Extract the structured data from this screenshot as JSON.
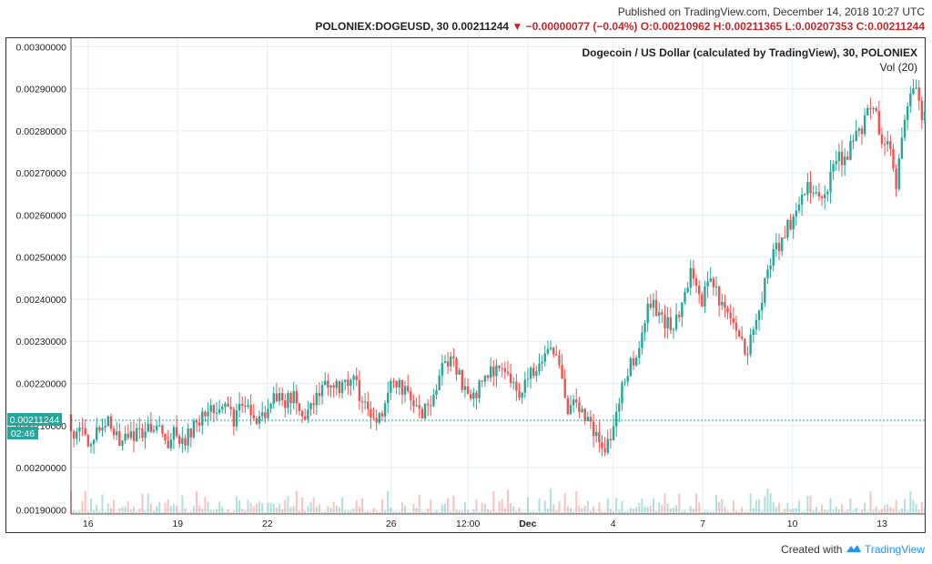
{
  "header": {
    "published": "Published on TradingView.com, December 14, 2018 10:27 UTC",
    "symbol_line_dark": "POLONIEX:DOGEUSD, 30  0.00211244",
    "symbol_line_red": "▼ −0.00000077 (−0.04%) O:0.00210962 H:0.00211365 L:0.00207353 C:0.00211244"
  },
  "chart_data": {
    "type": "candlestick",
    "title": "Dogecoin / US Dollar (calculated by TradingView), 30, POLONIEX",
    "subtitle": "Vol (20)",
    "ylim": [
      0.00189,
      0.00302
    ],
    "y_ticks": [
      "0.00300000",
      "0.00290000",
      "0.00280000",
      "0.00270000",
      "0.00260000",
      "0.00250000",
      "0.00240000",
      "0.00230000",
      "0.00220000",
      "0.00210000",
      "0.00200000",
      "0.00190000"
    ],
    "y_tick_values": [
      0.003,
      0.0029,
      0.0028,
      0.0027,
      0.0026,
      0.0025,
      0.0024,
      0.0023,
      0.0022,
      0.0021,
      0.002,
      0.0019
    ],
    "x_ticks": [
      {
        "label": "13",
        "frac": 0.05,
        "bold": false
      },
      {
        "label": "10",
        "frac": 0.155,
        "bold": false
      },
      {
        "label": "7",
        "frac": 0.26,
        "bold": false
      },
      {
        "label": "4",
        "frac": 0.365,
        "bold": false
      },
      {
        "label": "Dec",
        "frac": 0.465,
        "bold": true
      },
      {
        "label": "12:00",
        "frac": 0.535,
        "bold": false
      },
      {
        "label": "26",
        "frac": 0.625,
        "bold": false
      },
      {
        "label": "22",
        "frac": 0.77,
        "bold": false
      },
      {
        "label": "19",
        "frac": 0.875,
        "bold": false
      },
      {
        "label": "16",
        "frac": 0.98,
        "bold": false
      }
    ],
    "last_price": 0.00211244,
    "last_price_label": "0.00211244",
    "countdown_label": "02:46",
    "up_color": "#26a69a",
    "down_color": "#ef5350",
    "series_points": [
      {
        "t": 0.0,
        "v": 0.002845
      },
      {
        "t": 0.008,
        "v": 0.002905
      },
      {
        "t": 0.016,
        "v": 0.002855
      },
      {
        "t": 0.022,
        "v": 0.00282
      },
      {
        "t": 0.03,
        "v": 0.00266
      },
      {
        "t": 0.038,
        "v": 0.00279
      },
      {
        "t": 0.046,
        "v": 0.00276
      },
      {
        "t": 0.056,
        "v": 0.00286
      },
      {
        "t": 0.066,
        "v": 0.00283
      },
      {
        "t": 0.078,
        "v": 0.00278
      },
      {
        "t": 0.09,
        "v": 0.00273
      },
      {
        "t": 0.102,
        "v": 0.00274
      },
      {
        "t": 0.114,
        "v": 0.00263
      },
      {
        "t": 0.126,
        "v": 0.00266
      },
      {
        "t": 0.14,
        "v": 0.00267
      },
      {
        "t": 0.152,
        "v": 0.00259
      },
      {
        "t": 0.166,
        "v": 0.00254
      },
      {
        "t": 0.18,
        "v": 0.00247
      },
      {
        "t": 0.192,
        "v": 0.00235
      },
      {
        "t": 0.206,
        "v": 0.00227
      },
      {
        "t": 0.218,
        "v": 0.00232
      },
      {
        "t": 0.232,
        "v": 0.00238
      },
      {
        "t": 0.246,
        "v": 0.00244
      },
      {
        "t": 0.258,
        "v": 0.0024
      },
      {
        "t": 0.272,
        "v": 0.00246
      },
      {
        "t": 0.288,
        "v": 0.00235
      },
      {
        "t": 0.302,
        "v": 0.00234
      },
      {
        "t": 0.318,
        "v": 0.0024
      },
      {
        "t": 0.334,
        "v": 0.00227
      },
      {
        "t": 0.348,
        "v": 0.00222
      },
      {
        "t": 0.36,
        "v": 0.0021
      },
      {
        "t": 0.372,
        "v": 0.00203
      },
      {
        "t": 0.382,
        "v": 0.00208
      },
      {
        "t": 0.394,
        "v": 0.00211
      },
      {
        "t": 0.404,
        "v": 0.00215
      },
      {
        "t": 0.414,
        "v": 0.00214
      },
      {
        "t": 0.424,
        "v": 0.00223
      },
      {
        "t": 0.436,
        "v": 0.00228
      },
      {
        "t": 0.448,
        "v": 0.00225
      },
      {
        "t": 0.46,
        "v": 0.00222
      },
      {
        "t": 0.47,
        "v": 0.00218
      },
      {
        "t": 0.482,
        "v": 0.0022
      },
      {
        "t": 0.496,
        "v": 0.00224
      },
      {
        "t": 0.51,
        "v": 0.00223
      },
      {
        "t": 0.524,
        "v": 0.00217
      },
      {
        "t": 0.536,
        "v": 0.00219
      },
      {
        "t": 0.548,
        "v": 0.00224
      },
      {
        "t": 0.558,
        "v": 0.00226
      },
      {
        "t": 0.57,
        "v": 0.00218
      },
      {
        "t": 0.58,
        "v": 0.00214
      },
      {
        "t": 0.592,
        "v": 0.00213
      },
      {
        "t": 0.606,
        "v": 0.00219
      },
      {
        "t": 0.62,
        "v": 0.0022
      },
      {
        "t": 0.632,
        "v": 0.00214
      },
      {
        "t": 0.642,
        "v": 0.0021
      },
      {
        "t": 0.654,
        "v": 0.00215
      },
      {
        "t": 0.666,
        "v": 0.00221
      },
      {
        "t": 0.678,
        "v": 0.00219
      },
      {
        "t": 0.692,
        "v": 0.00221
      },
      {
        "t": 0.706,
        "v": 0.00217
      },
      {
        "t": 0.72,
        "v": 0.00212
      },
      {
        "t": 0.734,
        "v": 0.00217
      },
      {
        "t": 0.746,
        "v": 0.00216
      },
      {
        "t": 0.758,
        "v": 0.00218
      },
      {
        "t": 0.77,
        "v": 0.00213
      },
      {
        "t": 0.782,
        "v": 0.00212
      },
      {
        "t": 0.794,
        "v": 0.00216
      },
      {
        "t": 0.806,
        "v": 0.00211
      },
      {
        "t": 0.816,
        "v": 0.00215
      },
      {
        "t": 0.826,
        "v": 0.00213
      },
      {
        "t": 0.838,
        "v": 0.00213
      },
      {
        "t": 0.85,
        "v": 0.0021
      },
      {
        "t": 0.862,
        "v": 0.00207
      },
      {
        "t": 0.874,
        "v": 0.00208
      },
      {
        "t": 0.886,
        "v": 0.00206
      },
      {
        "t": 0.898,
        "v": 0.0021
      },
      {
        "t": 0.91,
        "v": 0.00208
      },
      {
        "t": 0.922,
        "v": 0.00208
      },
      {
        "t": 0.934,
        "v": 0.00206
      },
      {
        "t": 0.944,
        "v": 0.00208
      },
      {
        "t": 0.954,
        "v": 0.00212
      },
      {
        "t": 0.964,
        "v": 0.0021
      },
      {
        "t": 0.974,
        "v": 0.00205
      },
      {
        "t": 0.984,
        "v": 0.00208
      },
      {
        "t": 0.992,
        "v": 0.00207
      },
      {
        "t": 1.0,
        "v": 0.00211244
      }
    ]
  },
  "footer": {
    "created_with": "Created with",
    "brand": "TradingView"
  }
}
